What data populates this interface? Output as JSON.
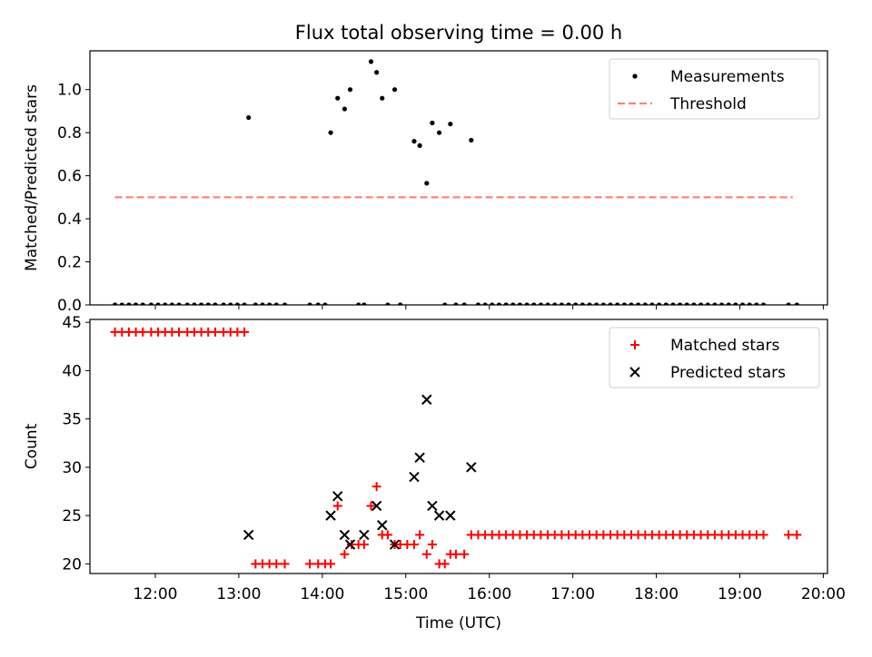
{
  "chart_data": [
    {
      "type": "scatter",
      "title": "Flux total observing time = 0.00 h",
      "xlabel": "",
      "ylabel": "Matched/Predicted stars",
      "ylim": [
        0,
        1.18
      ],
      "xlim": [
        "11:13",
        "20:03"
      ],
      "yticks": [
        0.0,
        0.2,
        0.4,
        0.6,
        0.8,
        1.0
      ],
      "legend_position": "top-right",
      "grid": false,
      "series": [
        {
          "name": "Measurements",
          "kind": "scatter",
          "marker": "dot",
          "color": "#000000",
          "points": [
            [
              "11:31",
              0
            ],
            [
              "11:36",
              0
            ],
            [
              "11:41",
              0
            ],
            [
              "11:46",
              0
            ],
            [
              "11:51",
              0
            ],
            [
              "11:57",
              0
            ],
            [
              "12:02",
              0
            ],
            [
              "12:07",
              0
            ],
            [
              "12:12",
              0
            ],
            [
              "12:17",
              0
            ],
            [
              "12:23",
              0
            ],
            [
              "12:28",
              0
            ],
            [
              "12:33",
              0
            ],
            [
              "12:38",
              0
            ],
            [
              "12:43",
              0
            ],
            [
              "12:49",
              0
            ],
            [
              "12:54",
              0
            ],
            [
              "12:59",
              0
            ],
            [
              "13:04",
              0
            ],
            [
              "13:07",
              0.87
            ],
            [
              "13:12",
              0
            ],
            [
              "13:17",
              0
            ],
            [
              "13:22",
              0
            ],
            [
              "13:27",
              0
            ],
            [
              "13:33",
              0
            ],
            [
              "13:51",
              0
            ],
            [
              "13:57",
              0
            ],
            [
              "14:02",
              0
            ],
            [
              "14:06",
              0.8
            ],
            [
              "14:11",
              0.96
            ],
            [
              "14:16",
              0.91
            ],
            [
              "14:20",
              1.0
            ],
            [
              "14:26",
              0
            ],
            [
              "14:30",
              0
            ],
            [
              "14:35",
              1.13
            ],
            [
              "14:39",
              1.08
            ],
            [
              "14:43",
              0.96
            ],
            [
              "14:47",
              0
            ],
            [
              "14:52",
              1.0
            ],
            [
              "14:56",
              0
            ],
            [
              "15:06",
              0.76
            ],
            [
              "15:10",
              0.74
            ],
            [
              "15:15",
              0.565
            ],
            [
              "15:19",
              0.845
            ],
            [
              "15:24",
              0.8
            ],
            [
              "15:28",
              0
            ],
            [
              "15:32",
              0.84
            ],
            [
              "15:36",
              0
            ],
            [
              "15:42",
              0
            ],
            [
              "15:47",
              0.765
            ],
            [
              "15:52",
              0
            ],
            [
              "15:57",
              0
            ],
            [
              "16:02",
              0
            ],
            [
              "16:07",
              0
            ],
            [
              "16:12",
              0
            ],
            [
              "16:17",
              0
            ],
            [
              "16:22",
              0
            ],
            [
              "16:27",
              0
            ],
            [
              "16:32",
              0
            ],
            [
              "16:37",
              0
            ],
            [
              "16:42",
              0
            ],
            [
              "16:47",
              0
            ],
            [
              "16:52",
              0
            ],
            [
              "16:57",
              0
            ],
            [
              "17:02",
              0
            ],
            [
              "17:07",
              0
            ],
            [
              "17:12",
              0
            ],
            [
              "17:17",
              0
            ],
            [
              "17:22",
              0
            ],
            [
              "17:27",
              0
            ],
            [
              "17:32",
              0
            ],
            [
              "17:37",
              0
            ],
            [
              "17:42",
              0
            ],
            [
              "17:47",
              0
            ],
            [
              "17:52",
              0
            ],
            [
              "17:57",
              0
            ],
            [
              "18:02",
              0
            ],
            [
              "18:07",
              0
            ],
            [
              "18:12",
              0
            ],
            [
              "18:17",
              0
            ],
            [
              "18:22",
              0
            ],
            [
              "18:27",
              0
            ],
            [
              "18:32",
              0
            ],
            [
              "18:37",
              0
            ],
            [
              "18:42",
              0
            ],
            [
              "18:47",
              0
            ],
            [
              "18:52",
              0
            ],
            [
              "18:57",
              0
            ],
            [
              "19:02",
              0
            ],
            [
              "19:07",
              0
            ],
            [
              "19:12",
              0
            ],
            [
              "19:17",
              0
            ],
            [
              "19:35",
              0
            ],
            [
              "19:41",
              0
            ]
          ]
        },
        {
          "name": "Threshold",
          "kind": "line",
          "dash": "dashed",
          "color": "#ff8080",
          "x_range": [
            "11:31",
            "19:38"
          ],
          "value": 0.5
        }
      ]
    },
    {
      "type": "scatter",
      "title": "",
      "xlabel": "Time (UTC)",
      "ylabel": "Count",
      "ylim": [
        19,
        45.3
      ],
      "xlim": [
        "11:13",
        "20:03"
      ],
      "yticks": [
        20,
        25,
        30,
        35,
        40,
        45
      ],
      "xticks": [
        "12:00",
        "13:00",
        "14:00",
        "15:00",
        "16:00",
        "17:00",
        "18:00",
        "19:00",
        "20:00"
      ],
      "legend_position": "top-right",
      "grid": false,
      "series": [
        {
          "name": "Matched stars",
          "marker": "plus",
          "color": "#ff0000",
          "points": [
            [
              "11:31",
              44
            ],
            [
              "11:36",
              44
            ],
            [
              "11:41",
              44
            ],
            [
              "11:46",
              44
            ],
            [
              "11:51",
              44
            ],
            [
              "11:57",
              44
            ],
            [
              "12:02",
              44
            ],
            [
              "12:07",
              44
            ],
            [
              "12:12",
              44
            ],
            [
              "12:17",
              44
            ],
            [
              "12:23",
              44
            ],
            [
              "12:28",
              44
            ],
            [
              "12:33",
              44
            ],
            [
              "12:38",
              44
            ],
            [
              "12:43",
              44
            ],
            [
              "12:49",
              44
            ],
            [
              "12:54",
              44
            ],
            [
              "12:59",
              44
            ],
            [
              "13:04",
              44
            ],
            [
              "13:12",
              20
            ],
            [
              "13:17",
              20
            ],
            [
              "13:22",
              20
            ],
            [
              "13:27",
              20
            ],
            [
              "13:33",
              20
            ],
            [
              "13:51",
              20
            ],
            [
              "13:57",
              20
            ],
            [
              "14:02",
              20
            ],
            [
              "14:06",
              20
            ],
            [
              "14:11",
              26
            ],
            [
              "14:16",
              21
            ],
            [
              "14:21",
              22
            ],
            [
              "14:26",
              22
            ],
            [
              "14:30",
              22
            ],
            [
              "14:35",
              26
            ],
            [
              "14:39",
              28
            ],
            [
              "14:43",
              23
            ],
            [
              "14:47",
              23
            ],
            [
              "14:52",
              22
            ],
            [
              "14:56",
              22
            ],
            [
              "15:01",
              22
            ],
            [
              "15:06",
              22
            ],
            [
              "15:10",
              23
            ],
            [
              "15:15",
              21
            ],
            [
              "15:19",
              22
            ],
            [
              "15:24",
              20
            ],
            [
              "15:28",
              20
            ],
            [
              "15:32",
              21
            ],
            [
              "15:36",
              21
            ],
            [
              "15:42",
              21
            ],
            [
              "15:47",
              23
            ],
            [
              "15:52",
              23
            ],
            [
              "15:57",
              23
            ],
            [
              "16:02",
              23
            ],
            [
              "16:07",
              23
            ],
            [
              "16:12",
              23
            ],
            [
              "16:17",
              23
            ],
            [
              "16:22",
              23
            ],
            [
              "16:27",
              23
            ],
            [
              "16:32",
              23
            ],
            [
              "16:37",
              23
            ],
            [
              "16:42",
              23
            ],
            [
              "16:47",
              23
            ],
            [
              "16:52",
              23
            ],
            [
              "16:57",
              23
            ],
            [
              "17:02",
              23
            ],
            [
              "17:07",
              23
            ],
            [
              "17:12",
              23
            ],
            [
              "17:17",
              23
            ],
            [
              "17:22",
              23
            ],
            [
              "17:27",
              23
            ],
            [
              "17:32",
              23
            ],
            [
              "17:37",
              23
            ],
            [
              "17:42",
              23
            ],
            [
              "17:47",
              23
            ],
            [
              "17:52",
              23
            ],
            [
              "17:57",
              23
            ],
            [
              "18:02",
              23
            ],
            [
              "18:07",
              23
            ],
            [
              "18:12",
              23
            ],
            [
              "18:17",
              23
            ],
            [
              "18:22",
              23
            ],
            [
              "18:27",
              23
            ],
            [
              "18:32",
              23
            ],
            [
              "18:37",
              23
            ],
            [
              "18:42",
              23
            ],
            [
              "18:47",
              23
            ],
            [
              "18:52",
              23
            ],
            [
              "18:57",
              23
            ],
            [
              "19:02",
              23
            ],
            [
              "19:07",
              23
            ],
            [
              "19:12",
              23
            ],
            [
              "19:17",
              23
            ],
            [
              "19:35",
              23
            ],
            [
              "19:41",
              23
            ]
          ]
        },
        {
          "name": "Predicted stars",
          "marker": "x",
          "color": "#000000",
          "points": [
            [
              "13:07",
              23
            ],
            [
              "14:06",
              25
            ],
            [
              "14:11",
              27
            ],
            [
              "14:16",
              23
            ],
            [
              "14:20",
              22
            ],
            [
              "14:30",
              23
            ],
            [
              "14:39",
              26
            ],
            [
              "14:43",
              24
            ],
            [
              "14:52",
              22
            ],
            [
              "15:06",
              29
            ],
            [
              "15:10",
              31
            ],
            [
              "15:15",
              37
            ],
            [
              "15:19",
              26
            ],
            [
              "15:24",
              25
            ],
            [
              "15:32",
              25
            ],
            [
              "15:47",
              30
            ]
          ]
        }
      ]
    }
  ]
}
